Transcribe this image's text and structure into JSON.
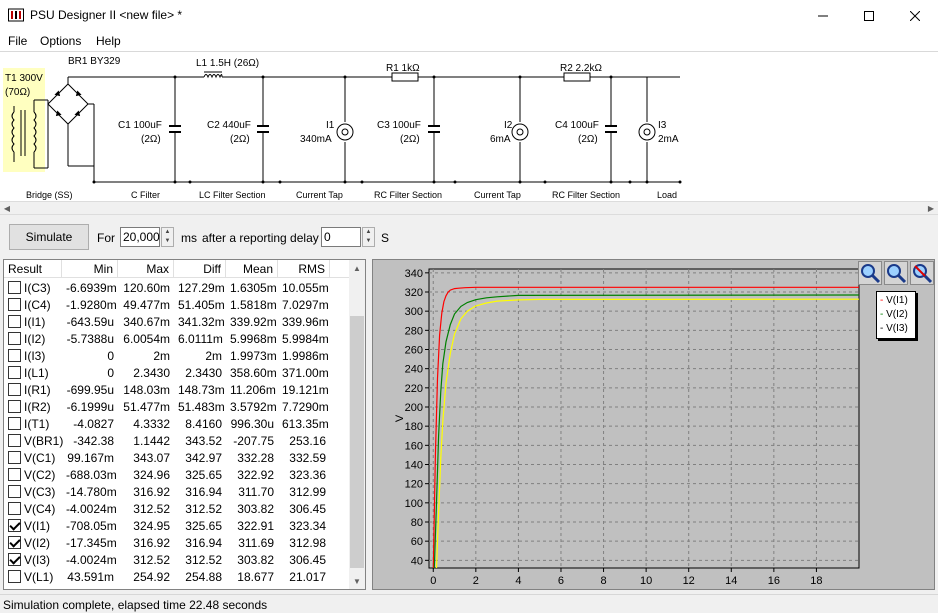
{
  "window": {
    "title": "PSU Designer II  <new file> *",
    "min_icon": "minimize-icon",
    "max_icon": "maximize-icon",
    "close_icon": "close-icon"
  },
  "menu": {
    "items": [
      "File",
      "Options",
      "Help"
    ]
  },
  "schematic": {
    "components": {
      "t1": {
        "label1": "T1 300V",
        "label2": "(70Ω)"
      },
      "br1": {
        "label": "BR1 BY329"
      },
      "l1": {
        "label": "L1 1.5H (26Ω)"
      },
      "c1": {
        "label1": "C1 100uF",
        "label2": "(2Ω)"
      },
      "c2": {
        "label1": "C2 440uF",
        "label2": "(2Ω)"
      },
      "i1": {
        "label1": "I1",
        "label2": "340mA"
      },
      "r1": {
        "label": "R1 1kΩ"
      },
      "c3": {
        "label1": "C3 100uF",
        "label2": "(2Ω)"
      },
      "i2": {
        "label1": "I2",
        "label2": "6mA"
      },
      "r2": {
        "label": "R2 2.2kΩ"
      },
      "c4": {
        "label1": "C4 100uF",
        "label2": "(2Ω)"
      },
      "i3": {
        "label1": "I3",
        "label2": "2mA"
      }
    },
    "sections": [
      "Bridge (SS)",
      "C Filter",
      "LC Filter Section",
      "Current Tap",
      "RC Filter Section",
      "Current Tap",
      "RC Filter Section",
      "Load"
    ],
    "colors": {
      "transformer_highlight": "#ffffc0"
    }
  },
  "simulate": {
    "button_label": "Simulate",
    "for_label": "For",
    "duration_value": "20,000",
    "duration_unit": "ms",
    "delay_label": "after a reporting delay of",
    "delay_value": "0",
    "delay_unit": "S"
  },
  "results": {
    "columns": [
      "Result",
      "Min",
      "Max",
      "Diff",
      "Mean",
      "RMS"
    ],
    "rows": [
      {
        "name": "I(C3)",
        "checked": false,
        "min": "-6.6939m",
        "max": "120.60m",
        "diff": "127.29m",
        "mean": "1.6305m",
        "rms": "10.055m"
      },
      {
        "name": "I(C4)",
        "checked": false,
        "min": "-1.9280m",
        "max": "49.477m",
        "diff": "51.405m",
        "mean": "1.5818m",
        "rms": "7.0297m"
      },
      {
        "name": "I(I1)",
        "checked": false,
        "min": "-643.59u",
        "max": "340.67m",
        "diff": "341.32m",
        "mean": "339.92m",
        "rms": "339.96m"
      },
      {
        "name": "I(I2)",
        "checked": false,
        "min": "-5.7388u",
        "max": "6.0054m",
        "diff": "6.0111m",
        "mean": "5.9968m",
        "rms": "5.9984m"
      },
      {
        "name": "I(I3)",
        "checked": false,
        "min": "0",
        "max": "2m",
        "diff": "2m",
        "mean": "1.9973m",
        "rms": "1.9986m"
      },
      {
        "name": "I(L1)",
        "checked": false,
        "min": "0",
        "max": "2.3430",
        "diff": "2.3430",
        "mean": "358.60m",
        "rms": "371.00m"
      },
      {
        "name": "I(R1)",
        "checked": false,
        "min": "-699.95u",
        "max": "148.03m",
        "diff": "148.73m",
        "mean": "11.206m",
        "rms": "19.121m"
      },
      {
        "name": "I(R2)",
        "checked": false,
        "min": "-6.1999u",
        "max": "51.477m",
        "diff": "51.483m",
        "mean": "3.5792m",
        "rms": "7.7290m"
      },
      {
        "name": "I(T1)",
        "checked": false,
        "min": "-4.0827",
        "max": "4.3332",
        "diff": "8.4160",
        "mean": "996.30u",
        "rms": "613.35m"
      },
      {
        "name": "V(BR1)",
        "checked": false,
        "min": "-342.38",
        "max": "1.1442",
        "diff": "343.52",
        "mean": "-207.75",
        "rms": "253.16"
      },
      {
        "name": "V(C1)",
        "checked": false,
        "min": "99.167m",
        "max": "343.07",
        "diff": "342.97",
        "mean": "332.28",
        "rms": "332.59"
      },
      {
        "name": "V(C2)",
        "checked": false,
        "min": "-688.03m",
        "max": "324.96",
        "diff": "325.65",
        "mean": "322.92",
        "rms": "323.36"
      },
      {
        "name": "V(C3)",
        "checked": false,
        "min": "-14.780m",
        "max": "316.92",
        "diff": "316.94",
        "mean": "311.70",
        "rms": "312.99"
      },
      {
        "name": "V(C4)",
        "checked": false,
        "min": "-4.0024m",
        "max": "312.52",
        "diff": "312.52",
        "mean": "303.82",
        "rms": "306.45"
      },
      {
        "name": "V(I1)",
        "checked": true,
        "min": "-708.05m",
        "max": "324.95",
        "diff": "325.65",
        "mean": "322.91",
        "rms": "323.34"
      },
      {
        "name": "V(I2)",
        "checked": true,
        "min": "-17.345m",
        "max": "316.92",
        "diff": "316.94",
        "mean": "311.69",
        "rms": "312.98"
      },
      {
        "name": "V(I3)",
        "checked": true,
        "min": "-4.0024m",
        "max": "312.52",
        "diff": "312.52",
        "mean": "303.82",
        "rms": "306.45"
      },
      {
        "name": "V(L1)",
        "checked": false,
        "min": "43.591m",
        "max": "254.92",
        "diff": "254.88",
        "mean": "18.677",
        "rms": "21.017"
      }
    ]
  },
  "chart_data": {
    "type": "line",
    "title": "",
    "xlabel": "",
    "ylabel": "V",
    "xlim": [
      -0.2,
      20
    ],
    "ylim": [
      32,
      344
    ],
    "xticks": [
      0,
      2,
      4,
      6,
      8,
      10,
      12,
      14,
      16,
      18
    ],
    "yticks": [
      40,
      60,
      80,
      100,
      120,
      140,
      160,
      180,
      200,
      220,
      240,
      260,
      280,
      300,
      320,
      340
    ],
    "grid": true,
    "legend_position": "top-right",
    "series": [
      {
        "name": "V(I1)",
        "color": "#ff0000",
        "x": [
          0,
          0.1,
          0.2,
          0.3,
          0.4,
          0.5,
          0.6,
          0.7,
          0.8,
          1.0,
          1.2,
          1.5,
          2,
          3,
          20
        ],
        "y": [
          32,
          150,
          230,
          275,
          298,
          310,
          316,
          320,
          322,
          323.5,
          324,
          324.5,
          324.9,
          324.9,
          324.9
        ]
      },
      {
        "name": "V(I2)",
        "color": "#008000",
        "x": [
          0.05,
          0.15,
          0.25,
          0.35,
          0.45,
          0.6,
          0.8,
          1.0,
          1.3,
          1.6,
          2,
          2.5,
          3,
          4,
          20
        ],
        "y": [
          32,
          100,
          170,
          215,
          245,
          268,
          286,
          297,
          305,
          309,
          312,
          314,
          315,
          316.5,
          316.9
        ]
      },
      {
        "name": "V(I3)",
        "color": "#ffff00",
        "x": [
          0.15,
          0.25,
          0.35,
          0.45,
          0.6,
          0.8,
          1.0,
          1.3,
          1.6,
          2,
          2.5,
          3,
          4,
          5,
          20
        ],
        "y": [
          32,
          90,
          145,
          185,
          225,
          256,
          276,
          292,
          300,
          305.5,
          308.5,
          310.5,
          311.8,
          312.3,
          312.5
        ]
      }
    ]
  },
  "status": {
    "text": "Simulation complete, elapsed time 22.48 seconds"
  }
}
